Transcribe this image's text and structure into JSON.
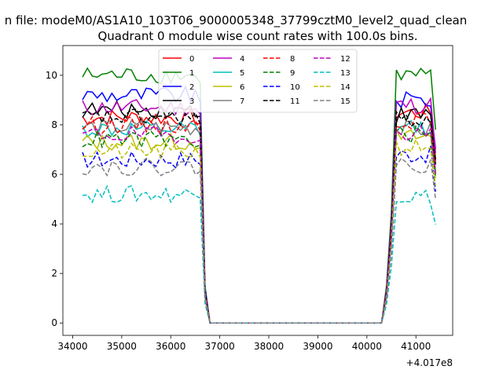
{
  "suptitle": "n file: modeM0/AS1A10_103T06_9000005348_37799cztM0_level2_quad_clean",
  "chart_data": {
    "type": "line",
    "title": "Quadrant 0 module wise count rates with 100.0s bins.",
    "xlabel": "",
    "ylabel": "",
    "x_offset_label": "+4.017e8",
    "xlim": [
      33800,
      41750
    ],
    "ylim": [
      -0.5,
      11.2
    ],
    "xticks": [
      34000,
      35000,
      36000,
      37000,
      38000,
      39000,
      40000,
      41000
    ],
    "xtick_labels": [
      "34000",
      "35000",
      "36000",
      "37000",
      "38000",
      "39000",
      "40000",
      "41000"
    ],
    "yticks": [
      0,
      2,
      4,
      6,
      8,
      10
    ],
    "ytick_labels": [
      "0",
      "2",
      "4",
      "6",
      "8",
      "10"
    ],
    "grid": false,
    "legend_position": "top",
    "legend_ncol": 4,
    "x_start": 34200,
    "x_step": 100,
    "n_points": 73,
    "zero_from_index": 26,
    "zero_to_index": 61,
    "series": [
      {
        "name": "0",
        "color": "#ff0000",
        "dash": "solid",
        "level1": 8.3,
        "level2": 8.5
      },
      {
        "name": "1",
        "color": "#008000",
        "dash": "solid",
        "level1": 10.0,
        "level2": 10.0
      },
      {
        "name": "2",
        "color": "#0000ff",
        "dash": "solid",
        "level1": 9.2,
        "level2": 9.0
      },
      {
        "name": "3",
        "color": "#000000",
        "dash": "solid",
        "level1": 8.6,
        "level2": 8.4
      },
      {
        "name": "4",
        "color": "#bf00bf",
        "dash": "solid",
        "level1": 8.7,
        "level2": 8.8
      },
      {
        "name": "5",
        "color": "#00bfbf",
        "dash": "solid",
        "level1": 7.8,
        "level2": 7.9
      },
      {
        "name": "6",
        "color": "#bfbf00",
        "dash": "solid",
        "level1": 7.3,
        "level2": 7.5
      },
      {
        "name": "7",
        "color": "#808080",
        "dash": "solid",
        "level1": 7.9,
        "level2": 7.8
      },
      {
        "name": "8",
        "color": "#ff0000",
        "dash": "dashed",
        "level1": 8.0,
        "level2": 8.2
      },
      {
        "name": "9",
        "color": "#008000",
        "dash": "dashed",
        "level1": 7.4,
        "level2": 7.6
      },
      {
        "name": "10",
        "color": "#0000ff",
        "dash": "dashed",
        "level1": 6.6,
        "level2": 6.8
      },
      {
        "name": "11",
        "color": "#000000",
        "dash": "dashed",
        "level1": 8.3,
        "level2": 8.2
      },
      {
        "name": "12",
        "color": "#bf00bf",
        "dash": "dashed",
        "level1": 7.6,
        "level2": 7.7
      },
      {
        "name": "13",
        "color": "#00bfbf",
        "dash": "dashed",
        "level1": 5.2,
        "level2": 5.1
      },
      {
        "name": "14",
        "color": "#bfbf00",
        "dash": "dashed",
        "level1": 6.9,
        "level2": 7.1
      },
      {
        "name": "15",
        "color": "#808080",
        "dash": "dashed",
        "level1": 6.3,
        "level2": 6.4
      }
    ]
  }
}
